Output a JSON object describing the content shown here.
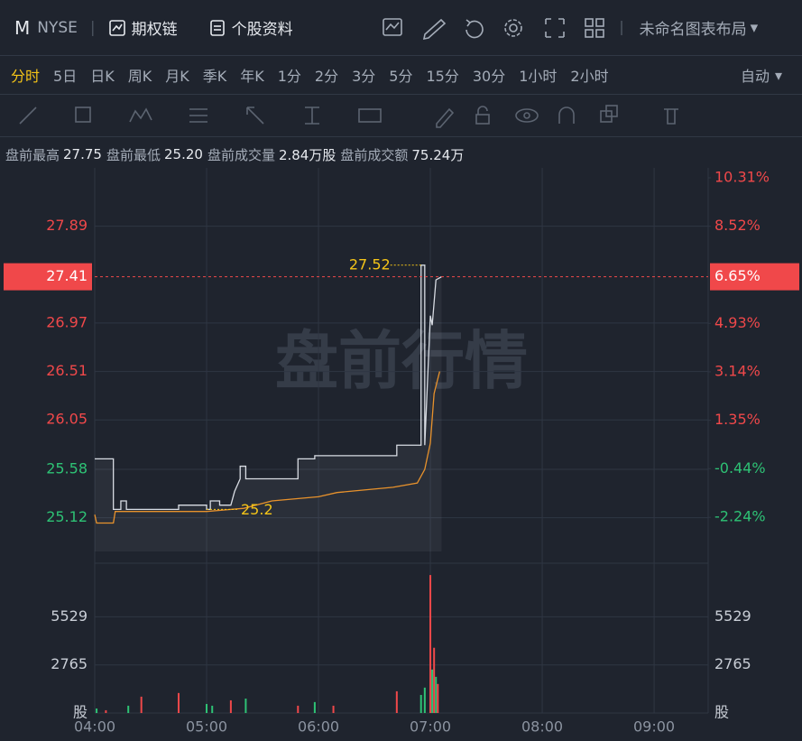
{
  "header": {
    "symbol": "M",
    "exchange": "NYSE",
    "buttons": [
      "期权链",
      "个股资料"
    ],
    "layout": "未命名图表布局"
  },
  "periods": {
    "items": [
      "分时",
      "5日",
      "日K",
      "周K",
      "月K",
      "季K",
      "年K",
      "1分",
      "2分",
      "3分",
      "5分",
      "15分",
      "30分",
      "1小时",
      "2小时"
    ],
    "active": 0,
    "auto": "自动"
  },
  "summary": [
    {
      "label": "盘前最高",
      "value": "27.75"
    },
    {
      "label": "盘前最低",
      "value": "25.20"
    },
    {
      "label": "盘前成交量",
      "value": "2.84万股"
    },
    {
      "label": "盘前成交额",
      "value": "75.24万"
    }
  ],
  "chart": {
    "watermark": "盘前行情",
    "grid": true,
    "up_color": "#f0484a",
    "down_color": "#2ec275",
    "xlim": [
      "04:00",
      "09:29"
    ],
    "xticks": [
      "04:00",
      "05:00",
      "06:00",
      "07:00",
      "08:00",
      "09:00"
    ],
    "ylim": [
      24.8,
      28.35
    ],
    "yticks": [
      25.12,
      25.58,
      26.05,
      26.51,
      26.97,
      27.89
    ],
    "y2lim": [
      -3.5,
      10.31
    ],
    "y2ticks": [
      {
        "value": -2.24,
        "label": "-2.24%"
      },
      {
        "value": -0.44,
        "label": "-0.44%"
      },
      {
        "value": 1.35,
        "label": "1.35%"
      },
      {
        "value": 3.14,
        "label": "3.14%"
      },
      {
        "value": 4.93,
        "label": "4.93%"
      },
      {
        "value": 8.52,
        "label": "8.52%"
      },
      {
        "value": 10.31,
        "label": "10.31%"
      }
    ],
    "last": {
      "value": 27.41,
      "change": {
        "value": 6.65,
        "label": "6.65%"
      }
    },
    "high_annotation": {
      "x": "06:55",
      "value": 27.52
    },
    "low_annotation": {
      "x": "05:00",
      "value": 25.2
    },
    "price": {
      "color": "#d8dce3",
      "x": [
        "04:00",
        "04:10",
        "04:10",
        "04:14",
        "04:14",
        "04:17",
        "04:17",
        "04:45",
        "04:45",
        "05:00",
        "05:00",
        "05:02",
        "05:02",
        "05:07",
        "05:07",
        "05:13",
        "05:15",
        "05:18",
        "05:18",
        "05:21",
        "05:21",
        "05:49",
        "05:49",
        "05:58",
        "05:58",
        "06:42",
        "06:42",
        "06:55",
        "06:55",
        "06:57",
        "06:57",
        "07:00",
        "07:01",
        "07:03",
        "07:06"
      ],
      "values": [
        25.68,
        25.68,
        25.2,
        25.2,
        25.28,
        25.28,
        25.2,
        25.2,
        25.24,
        25.24,
        25.2,
        25.2,
        25.28,
        25.28,
        25.24,
        25.24,
        25.37,
        25.49,
        25.61,
        25.61,
        25.49,
        25.49,
        25.68,
        25.68,
        25.71,
        25.71,
        25.81,
        25.81,
        27.52,
        27.52,
        25.81,
        27.04,
        26.95,
        27.38,
        27.41
      ]
    },
    "average": {
      "color": "#e8922c",
      "x": [
        "04:00",
        "04:01",
        "04:10",
        "04:11",
        "05:00",
        "05:20",
        "05:35",
        "06:00",
        "06:10",
        "06:40",
        "06:53",
        "06:57",
        "07:00",
        "07:02",
        "07:05"
      ],
      "values": [
        25.15,
        25.07,
        25.07,
        25.18,
        25.18,
        25.21,
        25.28,
        25.32,
        25.36,
        25.41,
        25.45,
        25.58,
        25.83,
        26.3,
        26.51
      ]
    },
    "volume_ylim": [
      0,
      8300
    ],
    "volume_yticks": [
      {
        "value": 0,
        "label": "股"
      },
      2765,
      5529
    ],
    "volume": {
      "x": [
        "04:01",
        "04:06",
        "04:18",
        "04:25",
        "04:45",
        "05:00",
        "05:03",
        "05:13",
        "05:21",
        "05:49",
        "05:58",
        "06:08",
        "06:42",
        "06:55",
        "06:57",
        "07:00",
        "07:01",
        "07:02",
        "07:03",
        "07:04"
      ],
      "values": [
        260,
        160,
        420,
        940,
        1150,
        520,
        420,
        730,
        830,
        420,
        630,
        420,
        1250,
        1040,
        1460,
        7930,
        2500,
        3750,
        2080,
        1670
      ],
      "colors": [
        "#2ec275",
        "#f0484a",
        "#2ec275",
        "#f0484a",
        "#f0484a",
        "#2ec275",
        "#2ec275",
        "#f0484a",
        "#2ec275",
        "#f0484a",
        "#2ec275",
        "#f0484a",
        "#f0484a",
        "#2ec275",
        "#2ec275",
        "#f0484a",
        "#2ec275",
        "#f0484a",
        "#2ec275",
        "#f0484a"
      ]
    }
  }
}
